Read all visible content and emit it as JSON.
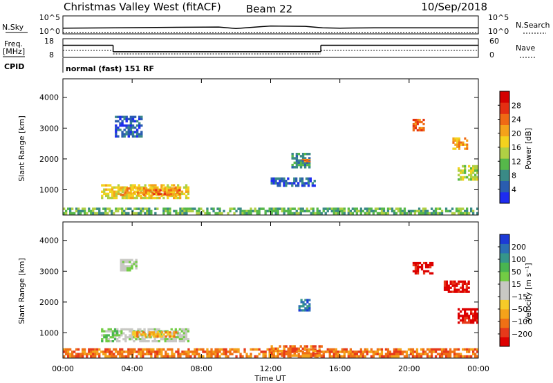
{
  "header": {
    "station": "Christmas Valley West (fitACF)",
    "beam": "Beam 22",
    "date": "10/Sep/2018"
  },
  "panel_labels": {
    "nsky": "N.Sky",
    "nsearch": "N.Search",
    "freq_line1": "Freq.",
    "freq_line2": "[MHz]",
    "nave": "Nave",
    "cpid": "CPID",
    "cpid_value": "normal (fast) 151 RF"
  },
  "chart_data": [
    {
      "type": "line",
      "name": "noise",
      "y_left_ticks": [
        "10^5",
        "10^0"
      ],
      "y_right_ticks": [
        "10^5",
        "10^0"
      ],
      "x": [
        0,
        3,
        6,
        9,
        10,
        12,
        14,
        15,
        16,
        18,
        20,
        22,
        24
      ],
      "series": [
        {
          "label": "N.Sky",
          "values": [
            1.6,
            1.7,
            1.8,
            1.9,
            1.5,
            2.2,
            2.1,
            1.7,
            1.6,
            1.7,
            1.7,
            1.7,
            1.7
          ]
        },
        {
          "label": "N.Search",
          "values": [
            0.3,
            0.3,
            0.3,
            0.3,
            0.3,
            0.3,
            0.3,
            0.3,
            0.3,
            0.3,
            0.3,
            0.3,
            0.3
          ]
        }
      ]
    },
    {
      "type": "line",
      "name": "frequency",
      "y_left_ticks": [
        "18",
        "8"
      ],
      "y_right_ticks": [
        "60",
        "0"
      ],
      "segments": [
        {
          "x": [
            0,
            2.9
          ],
          "freq": 14.5,
          "nave": 23
        },
        {
          "x": [
            2.9,
            14.9
          ],
          "freq": 11.0,
          "nave": 11
        },
        {
          "x": [
            14.9,
            24
          ],
          "freq": 14.5,
          "nave": 23
        }
      ]
    },
    {
      "type": "heatmap",
      "name": "power",
      "xlabel": "",
      "ylabel": "Slant Range [km]",
      "yticks": [
        1000,
        2000,
        3000,
        4000
      ],
      "ylim": [
        180,
        4600
      ],
      "xlim": [
        0,
        24
      ],
      "colorbar": {
        "label": "Power [dB]",
        "ticks": [
          "4",
          "8",
          "12",
          "16",
          "20",
          "24",
          "28"
        ],
        "colors": [
          "#1e2cf0",
          "#2a5db0",
          "#3a8a86",
          "#56b84a",
          "#b0d044",
          "#f3d21e",
          "#f4a21a",
          "#ef6a14",
          "#e42f12",
          "#d40000"
        ]
      },
      "regions": [
        {
          "t0": 2.2,
          "t1": 7.3,
          "r0": 700,
          "r1": 1180,
          "level": 5
        },
        {
          "t0": 3.3,
          "t1": 6.8,
          "r0": 800,
          "r1": 1080,
          "level": 6
        },
        {
          "t0": 5.2,
          "t1": 6.8,
          "r0": 830,
          "r1": 1020,
          "level": 7
        },
        {
          "t0": 0.0,
          "t1": 24.0,
          "r0": 200,
          "r1": 420,
          "level": 3
        },
        {
          "t0": 3.0,
          "t1": 4.6,
          "r0": 2700,
          "r1": 3400,
          "level": 1
        },
        {
          "t0": 13.2,
          "t1": 14.3,
          "r0": 1700,
          "r1": 2200,
          "level": 2
        },
        {
          "t0": 13.8,
          "t1": 14.3,
          "r0": 1900,
          "r1": 2000,
          "level": 7
        },
        {
          "t0": 12.0,
          "t1": 14.6,
          "r0": 1100,
          "r1": 1400,
          "level": 1
        },
        {
          "t0": 20.2,
          "t1": 20.9,
          "r0": 2900,
          "r1": 3300,
          "level": 7
        },
        {
          "t0": 22.5,
          "t1": 23.4,
          "r0": 2300,
          "r1": 2700,
          "level": 6
        },
        {
          "t0": 22.8,
          "t1": 24.0,
          "r0": 1300,
          "r1": 1800,
          "level": 4
        }
      ]
    },
    {
      "type": "heatmap",
      "name": "velocity",
      "xlabel": "Time UT",
      "ylabel": "Slant Range [km]",
      "yticks": [
        1000,
        2000,
        3000,
        4000
      ],
      "ylim": [
        180,
        4600
      ],
      "xlim": [
        0,
        24
      ],
      "xticks": [
        "00:00",
        "04:00",
        "08:00",
        "12:00",
        "16:00",
        "20:00",
        "00:00"
      ],
      "colorbar": {
        "label": "Velocity [m s⁻¹]",
        "ticks": [
          "200",
          "100",
          "50",
          "15",
          "−15",
          "−50",
          "−100",
          "−200"
        ],
        "colors": [
          "#1c3ad6",
          "#2b6fb4",
          "#35968a",
          "#49b550",
          "#72cc44",
          "#c8c8c4",
          "#c8c8c4",
          "#f5cb28",
          "#f4a21a",
          "#ef7015",
          "#e6391a",
          "#dd0000"
        ]
      },
      "regions": [
        {
          "t0": 2.2,
          "t1": 3.2,
          "r0": 700,
          "r1": 1150,
          "level": 4
        },
        {
          "t0": 3.2,
          "t1": 7.3,
          "r0": 700,
          "r1": 1150,
          "level": 5
        },
        {
          "t0": 4.0,
          "t1": 6.6,
          "r0": 850,
          "r1": 1050,
          "level": 8
        },
        {
          "t0": 0.0,
          "t1": 24.0,
          "r0": 200,
          "r1": 500,
          "level": 9
        },
        {
          "t0": 12.0,
          "t1": 15.0,
          "r0": 230,
          "r1": 600,
          "level": 9
        },
        {
          "t0": 20.2,
          "t1": 21.4,
          "r0": 2900,
          "r1": 3300,
          "level": 11
        },
        {
          "t0": 22.0,
          "t1": 23.5,
          "r0": 2300,
          "r1": 2700,
          "level": 11
        },
        {
          "t0": 22.8,
          "t1": 24.0,
          "r0": 1300,
          "r1": 1800,
          "level": 11
        },
        {
          "t0": 13.6,
          "t1": 14.3,
          "r0": 1700,
          "r1": 2100,
          "level": 1
        },
        {
          "t0": 3.3,
          "t1": 4.3,
          "r0": 3000,
          "r1": 3400,
          "level": 5
        }
      ]
    }
  ]
}
